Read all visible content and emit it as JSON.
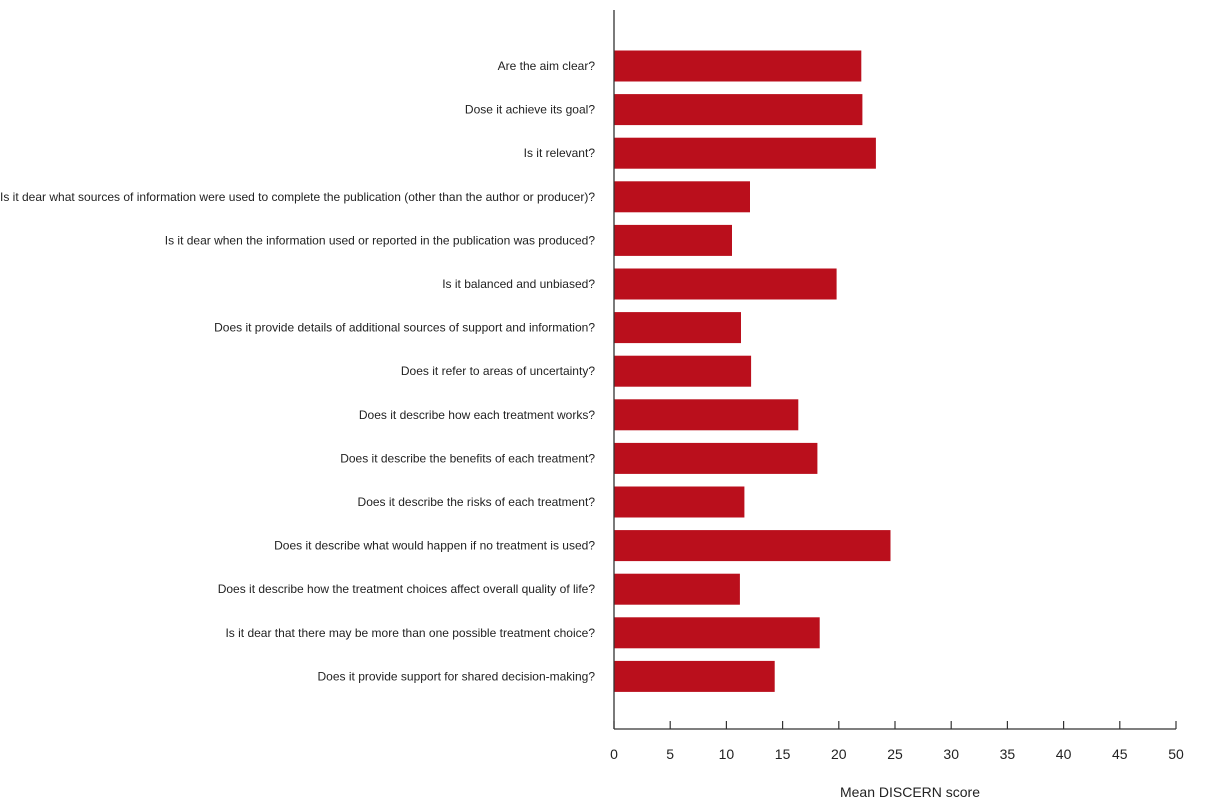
{
  "chart_data": {
    "type": "bar",
    "orientation": "horizontal",
    "categories": [
      "Are the aim clear?",
      "Dose it achieve its goal?",
      "Is it relevant?",
      "Is it dear what sources of information were used to complete the publication (other than the author or producer)?",
      "Is it dear when the information used or reported in the publication was produced?",
      "Is it balanced and unbiased?",
      "Does it provide details of additional sources of support and information?",
      "Does it refer to areas of uncertainty?",
      "Does it describe how each treatment works?",
      "Does it describe the benefits of each treatment?",
      "Does it describe the risks of each treatment?",
      "Does it describe what would happen if no treatment is used?",
      "Does it describe how the treatment choices affect overall quality of life?",
      "Is it dear that there may be more than one possible treatment choice?",
      "Does it provide support for shared decision-making?"
    ],
    "values": [
      22.0,
      22.1,
      23.3,
      12.1,
      10.5,
      19.8,
      11.3,
      12.2,
      16.4,
      18.1,
      11.6,
      24.6,
      11.2,
      18.3,
      14.3
    ],
    "xlabel": "Mean DISCERN score",
    "ylabel": "",
    "xlim": [
      0,
      50
    ],
    "xticks": [
      "0",
      "5",
      "10",
      "15",
      "20",
      "25",
      "30",
      "35",
      "40",
      "45",
      "50"
    ],
    "bar_color": "#BA0F1C",
    "axis_color": "#333333",
    "grid": false,
    "legend": "none"
  }
}
